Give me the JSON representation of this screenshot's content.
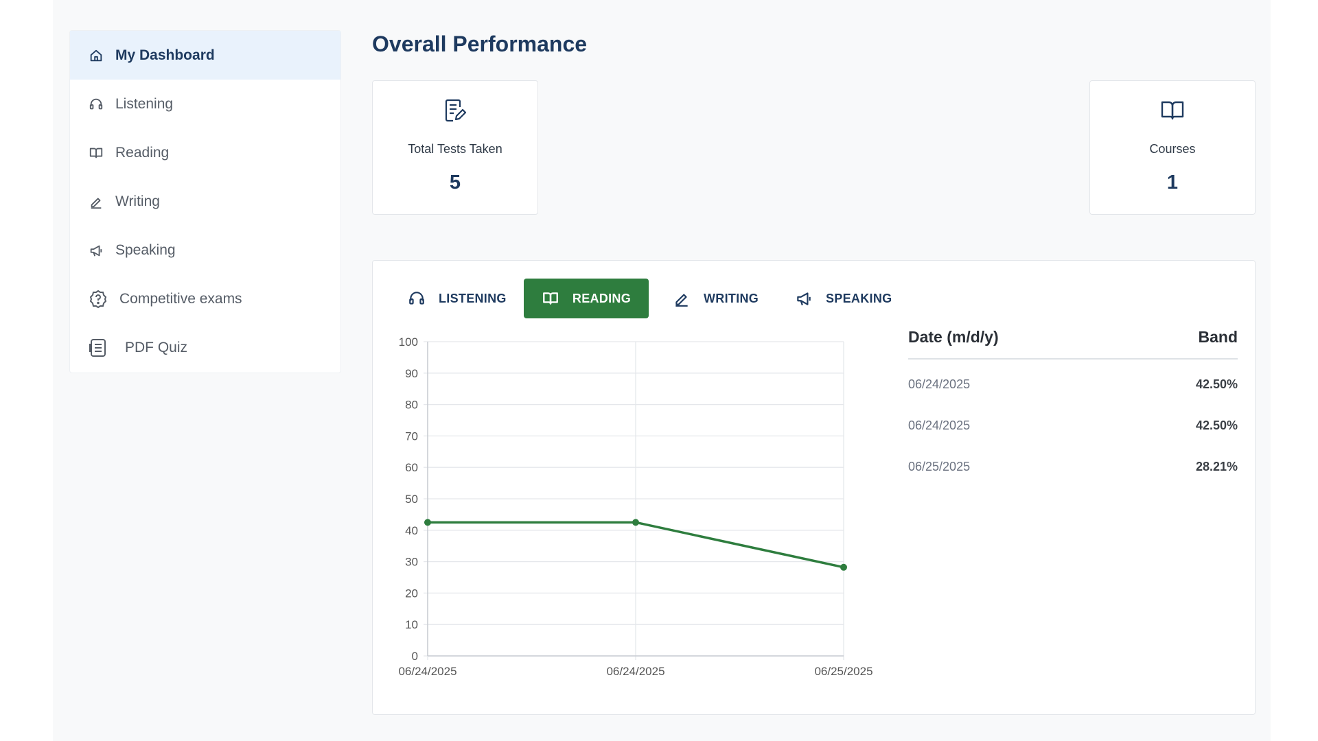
{
  "sidebar": {
    "items": [
      {
        "label": "My Dashboard",
        "icon": "home-icon",
        "active": true
      },
      {
        "label": "Listening",
        "icon": "headphones-icon"
      },
      {
        "label": "Reading",
        "icon": "book-icon"
      },
      {
        "label": "Writing",
        "icon": "pencil-icon"
      },
      {
        "label": "Speaking",
        "icon": "megaphone-icon"
      },
      {
        "label": "Competitive exams",
        "icon": "question-circle-icon"
      },
      {
        "label": "PDF Quiz",
        "icon": "document-list-icon"
      }
    ]
  },
  "main": {
    "title": "Overall Performance",
    "cards": [
      {
        "label": "Total Tests Taken",
        "value": "5",
        "icon": "test-edit-icon"
      },
      {
        "label": "Courses",
        "value": "1",
        "icon": "open-book-icon"
      }
    ],
    "tabs": [
      {
        "label": "LISTENING",
        "icon": "headphones-icon"
      },
      {
        "label": "READING",
        "icon": "open-book-icon",
        "active": true
      },
      {
        "label": "WRITING",
        "icon": "pencil-icon"
      },
      {
        "label": "SPEAKING",
        "icon": "megaphone-icon"
      }
    ],
    "table": {
      "headers": {
        "date": "Date (m/d/y)",
        "band": "Band"
      },
      "rows": [
        {
          "date": "06/24/2025",
          "band": "42.50%"
        },
        {
          "date": "06/24/2025",
          "band": "42.50%"
        },
        {
          "date": "06/25/2025",
          "band": "28.21%"
        }
      ]
    }
  },
  "colors": {
    "accent": "#2e7d3e",
    "title": "#1e3a5f",
    "active_bg": "#e9f2fc",
    "line": "#2e7d3e",
    "grid": "#e5e7eb"
  },
  "chart_data": {
    "type": "line",
    "categories": [
      "06/24/2025",
      "06/24/2025",
      "06/25/2025"
    ],
    "series": [
      {
        "values": [
          42.5,
          42.5,
          28.21
        ]
      }
    ],
    "yticks": [
      0,
      10,
      20,
      30,
      40,
      50,
      60,
      70,
      80,
      90,
      100
    ],
    "ylim": [
      0,
      100
    ],
    "grid": true,
    "legend": "none"
  }
}
